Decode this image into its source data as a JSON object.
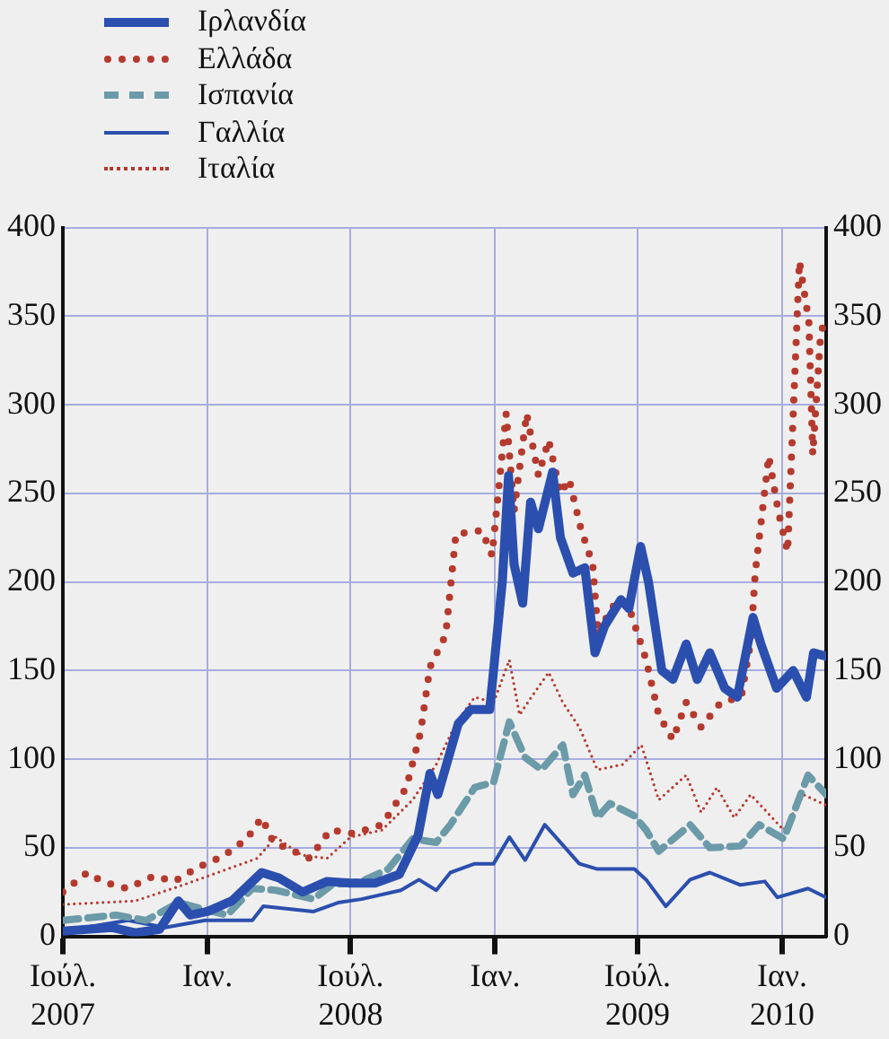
{
  "chart_data": {
    "type": "line",
    "legend": "top left",
    "grid": true,
    "xlim": [
      "2007-07-01",
      "2010-02-26"
    ],
    "xticks": [
      {
        "value": "2007-07-01",
        "label": "Ιούλ.\n2007"
      },
      {
        "value": "2008-01-01",
        "label": "Ιαν."
      },
      {
        "value": "2008-07-01",
        "label": "Ιούλ.\n2008"
      },
      {
        "value": "2009-01-01",
        "label": "Ιαν."
      },
      {
        "value": "2009-07-01",
        "label": "Ιούλ.\n2009"
      },
      {
        "value": "2010-01-01",
        "label": "Ιαν.\n2010"
      }
    ],
    "ylim": [
      0,
      400
    ],
    "yticks": [
      0,
      50,
      100,
      150,
      200,
      250,
      300,
      350,
      400
    ],
    "y2lim": [
      0,
      400
    ],
    "y2ticks": [
      0,
      50,
      100,
      150,
      200,
      250,
      300,
      350,
      400
    ],
    "series": [
      {
        "name": "Ιρλανδία",
        "color": "#2b4fae",
        "line_style": "solid",
        "x": [
          "2007-07-01",
          "2007-08-01",
          "2007-09-01",
          "2007-10-01",
          "2007-11-01",
          "2007-11-25",
          "2007-12-10",
          "2008-01-01",
          "2008-02-01",
          "2008-03-10",
          "2008-04-01",
          "2008-05-01",
          "2008-06-01",
          "2008-07-01",
          "2008-08-01",
          "2008-09-01",
          "2008-09-25",
          "2008-10-10",
          "2008-10-20",
          "2008-11-15",
          "2008-12-01",
          "2008-12-25",
          "2009-01-10",
          "2009-01-18",
          "2009-01-25",
          "2009-02-05",
          "2009-02-15",
          "2009-02-25",
          "2009-03-15",
          "2009-03-25",
          "2009-04-10",
          "2009-04-25",
          "2009-05-08",
          "2009-05-20",
          "2009-06-10",
          "2009-06-20",
          "2009-07-05",
          "2009-07-15",
          "2009-08-01",
          "2009-08-15",
          "2009-09-01",
          "2009-09-15",
          "2009-10-01",
          "2009-10-20",
          "2009-11-05",
          "2009-11-25",
          "2009-12-05",
          "2009-12-25",
          "2010-01-15",
          "2010-02-01",
          "2010-02-10",
          "2010-02-26"
        ],
        "values": [
          3,
          4,
          5,
          2,
          4,
          20,
          12,
          14,
          20,
          36,
          33,
          25,
          31,
          30,
          30,
          35,
          57,
          92,
          80,
          120,
          128,
          128,
          200,
          260,
          210,
          188,
          245,
          230,
          262,
          225,
          205,
          208,
          160,
          175,
          190,
          185,
          220,
          200,
          150,
          145,
          165,
          145,
          160,
          140,
          135,
          180,
          165,
          140,
          150,
          135,
          160,
          158
        ]
      },
      {
        "name": "Ελλάδα",
        "color": "#b53a2e",
        "line_style": "dotted",
        "x": [
          "2007-07-01",
          "2007-08-01",
          "2007-08-20",
          "2007-09-20",
          "2007-10-25",
          "2007-11-20",
          "2007-12-20",
          "2008-01-20",
          "2008-02-20",
          "2008-03-10",
          "2008-03-25",
          "2008-04-10",
          "2008-05-10",
          "2008-06-05",
          "2008-07-05",
          "2008-08-10",
          "2008-09-10",
          "2008-09-28",
          "2008-10-10",
          "2008-10-30",
          "2008-11-12",
          "2008-12-15",
          "2008-12-28",
          "2009-01-15",
          "2009-01-25",
          "2009-02-10",
          "2009-02-25",
          "2009-03-10",
          "2009-03-25",
          "2009-04-05",
          "2009-04-20",
          "2009-05-05",
          "2009-05-12",
          "2009-05-28",
          "2009-06-10",
          "2009-06-20",
          "2009-07-12",
          "2009-07-28",
          "2009-08-15",
          "2009-09-01",
          "2009-09-20",
          "2009-10-15",
          "2009-11-10",
          "2009-11-22",
          "2009-11-28",
          "2009-12-15",
          "2009-12-27",
          "2010-01-08",
          "2010-01-23",
          "2010-02-04",
          "2010-02-09",
          "2010-02-19",
          "2010-02-26"
        ],
        "values": [
          25,
          36,
          31,
          27,
          34,
          31,
          39,
          45,
          55,
          67,
          53,
          50,
          44,
          60,
          58,
          63,
          84,
          115,
          152,
          170,
          227,
          229,
          215,
          295,
          240,
          295,
          260,
          280,
          250,
          258,
          230,
          210,
          170,
          185,
          190,
          186,
          156,
          125,
          111,
          132,
          118,
          132,
          135,
          166,
          206,
          271,
          240,
          217,
          381,
          347,
          272,
          340,
          350
        ]
      },
      {
        "name": "Ισπανία",
        "color": "#6b9aa8",
        "line_style": "dashed",
        "x": [
          "2007-07-01",
          "2007-09-07",
          "2007-10-15",
          "2007-11-25",
          "2007-12-29",
          "2008-01-26",
          "2008-02-27",
          "2008-03-28",
          "2008-05-15",
          "2008-06-07",
          "2008-07-15",
          "2008-08-18",
          "2008-09-18",
          "2008-10-18",
          "2008-11-05",
          "2008-12-06",
          "2008-12-30",
          "2009-01-19",
          "2009-02-08",
          "2009-03-01",
          "2009-03-28",
          "2009-04-10",
          "2009-04-25",
          "2009-05-11",
          "2009-05-27",
          "2009-06-27",
          "2009-07-12",
          "2009-07-28",
          "2009-09-06",
          "2009-10-01",
          "2009-11-09",
          "2009-12-03",
          "2010-01-03",
          "2010-02-03",
          "2010-02-26"
        ],
        "values": [
          9,
          12,
          9,
          19,
          15,
          12,
          27,
          26,
          21,
          29,
          31,
          38,
          55,
          53,
          63,
          84,
          87,
          121,
          101,
          94,
          108,
          80,
          91,
          67,
          75,
          68,
          60,
          48,
          63,
          50,
          51,
          63,
          55,
          91,
          80
        ]
      },
      {
        "name": "Γαλλία",
        "color": "#2b4fae",
        "line_style": "solid",
        "x": [
          "2007-07-01",
          "2007-09-22",
          "2007-11-08",
          "2007-12-29",
          "2008-02-27",
          "2008-03-12",
          "2008-05-15",
          "2008-06-15",
          "2008-07-15",
          "2008-09-03",
          "2008-09-26",
          "2008-10-18",
          "2008-11-05",
          "2008-12-06",
          "2008-12-30",
          "2009-01-19",
          "2009-02-08",
          "2009-03-05",
          "2009-03-25",
          "2009-04-18",
          "2009-05-11",
          "2009-06-27",
          "2009-07-12",
          "2009-08-06",
          "2009-09-06",
          "2009-10-01",
          "2009-11-09",
          "2009-12-10",
          "2009-12-26",
          "2010-02-03",
          "2010-02-26"
        ],
        "values": [
          3,
          9,
          5,
          9,
          9,
          17,
          14,
          19,
          21,
          26,
          32,
          26,
          36,
          41,
          41,
          56,
          43,
          63,
          53,
          41,
          38,
          38,
          32,
          17,
          32,
          36,
          29,
          31,
          22,
          27,
          22
        ]
      },
      {
        "name": "Ιταλία",
        "color": "#b53a2e",
        "line_style": "dotted",
        "x": [
          "2007-07-01",
          "2007-10-01",
          "2007-12-01",
          "2008-03-04",
          "2008-03-28",
          "2008-04-29",
          "2008-06-01",
          "2008-07-01",
          "2008-08-10",
          "2008-09-18",
          "2008-10-18",
          "2008-11-13",
          "2008-12-06",
          "2008-12-30",
          "2009-01-19",
          "2009-02-01",
          "2009-02-16",
          "2009-03-10",
          "2009-03-28",
          "2009-04-18",
          "2009-05-11",
          "2009-06-12",
          "2009-07-06",
          "2009-07-28",
          "2009-09-01",
          "2009-09-20",
          "2009-10-10",
          "2009-11-01",
          "2009-11-22",
          "2010-01-03",
          "2010-01-28",
          "2010-02-26"
        ],
        "values": [
          18,
          20,
          29,
          44,
          56,
          46,
          44,
          56,
          60,
          77,
          97,
          121,
          135,
          132,
          156,
          125,
          135,
          149,
          132,
          118,
          94,
          97,
          108,
          77,
          91,
          70,
          84,
          67,
          80,
          60,
          80,
          74
        ]
      }
    ]
  }
}
